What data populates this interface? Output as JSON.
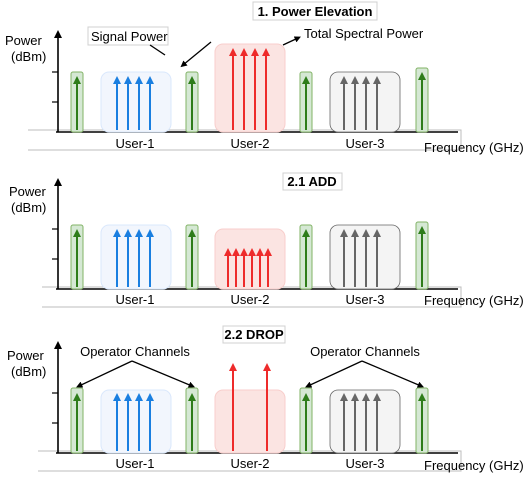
{
  "panels": [
    {
      "title": "1. Power Elevation",
      "y_label_line1": "Power",
      "y_label_line2": "(dBm)",
      "x_label": "Frequency (GHz)",
      "users": [
        "User-1",
        "User-2",
        "User-3"
      ],
      "annotations": {
        "signal_power": "Signal Power",
        "total_spectral_power": "Total Spectral Power"
      }
    },
    {
      "title": "2.1 ADD",
      "y_label_line1": "Power",
      "y_label_line2": "(dBm)",
      "x_label": "Frequency (GHz)",
      "users": [
        "User-1",
        "User-2",
        "User-3"
      ]
    },
    {
      "title": "2.2 DROP",
      "y_label_line1": "Power",
      "y_label_line2": "(dBm)",
      "x_label": "Frequency (GHz)",
      "users": [
        "User-1",
        "User-2",
        "User-3"
      ],
      "annotations": {
        "operator_channels_left": "Operator Channels",
        "operator_channels_right": "Operator Channels"
      }
    }
  ],
  "colors": {
    "operator_channel": "#2e7d1a",
    "operator_box": "#d5e8d4",
    "user1": "#1a7fe0",
    "user1_box": "#dae8fc",
    "user2": "#ee2b2b",
    "user2_box": "#f8cecc",
    "user3": "#666666",
    "user3_box": "#eeeeee"
  }
}
